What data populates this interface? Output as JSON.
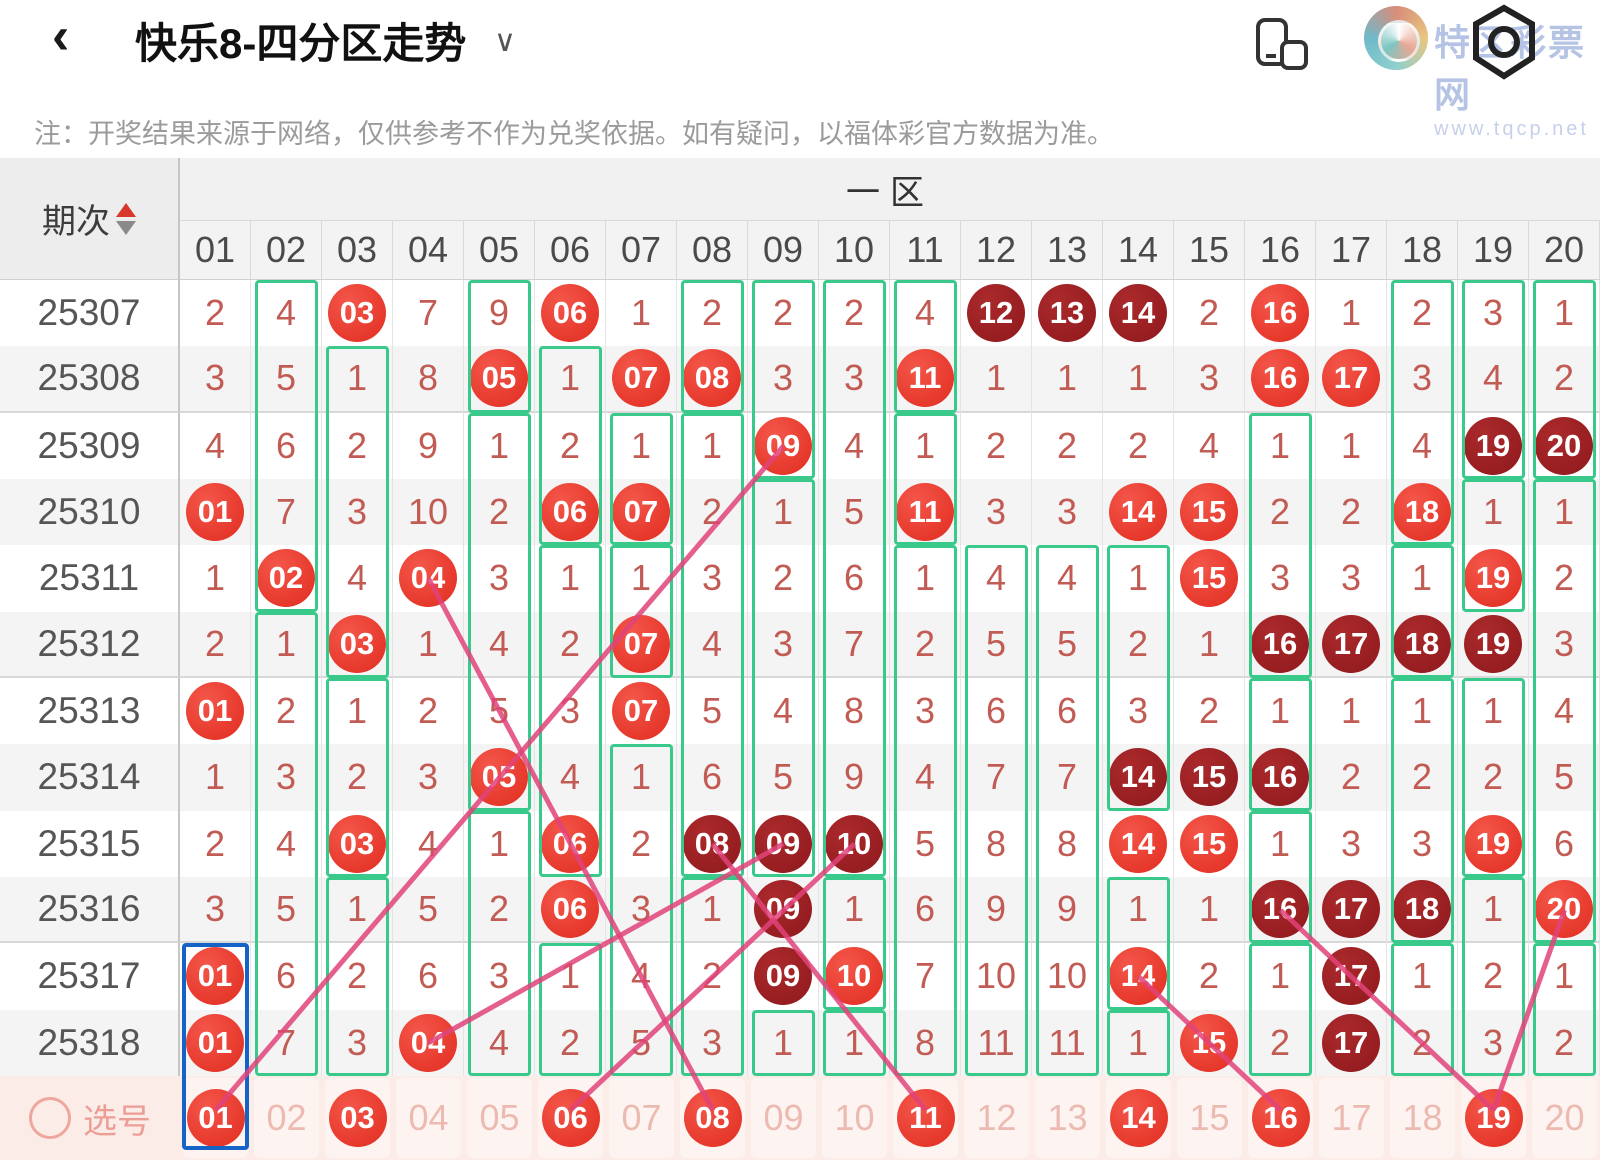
{
  "header": {
    "back_icon": "‹",
    "title": "快乐8-四分区走势",
    "dropdown_icon": "∨"
  },
  "watermark": {
    "site_name": "特区彩票网",
    "site_url": "www.tqcp.net"
  },
  "note": "注：开奖结果来源于网络，仅供参考不作为兑奖依据。如有疑问，以福体彩官方数据为准。",
  "table": {
    "period_label": "期次",
    "zone_label": "一区",
    "columns": [
      "01",
      "02",
      "03",
      "04",
      "05",
      "06",
      "07",
      "08",
      "09",
      "10",
      "11",
      "12",
      "13",
      "14",
      "15",
      "16",
      "17",
      "18",
      "19",
      "20"
    ],
    "rows": [
      {
        "period": "25307",
        "cells": [
          "2",
          "4",
          "R03",
          "7",
          "9",
          "R06",
          "1",
          "2",
          "2",
          "2",
          "4",
          "D12",
          "D13",
          "D14",
          "2",
          "R16",
          "1",
          "2",
          "3",
          "1"
        ]
      },
      {
        "period": "25308",
        "cells": [
          "3",
          "5",
          "1",
          "8",
          "R05",
          "1",
          "R07",
          "R08",
          "3",
          "3",
          "R11",
          "1",
          "1",
          "1",
          "3",
          "R16",
          "R17",
          "3",
          "4",
          "2"
        ]
      },
      {
        "period": "25309",
        "cells": [
          "4",
          "6",
          "2",
          "9",
          "1",
          "2",
          "1",
          "1",
          "R09",
          "4",
          "1",
          "2",
          "2",
          "2",
          "4",
          "1",
          "1",
          "4",
          "D19",
          "D20"
        ]
      },
      {
        "period": "25310",
        "cells": [
          "R01",
          "7",
          "3",
          "10",
          "2",
          "R06",
          "R07",
          "2",
          "1",
          "5",
          "R11",
          "3",
          "3",
          "R14",
          "R15",
          "2",
          "2",
          "R18",
          "1",
          "1"
        ]
      },
      {
        "period": "25311",
        "cells": [
          "1",
          "R02",
          "4",
          "R04",
          "3",
          "1",
          "1",
          "3",
          "2",
          "6",
          "1",
          "4",
          "4",
          "1",
          "R15",
          "3",
          "3",
          "1",
          "R19",
          "2"
        ]
      },
      {
        "period": "25312",
        "cells": [
          "2",
          "1",
          "R03",
          "1",
          "4",
          "2",
          "R07",
          "4",
          "3",
          "7",
          "2",
          "5",
          "5",
          "2",
          "1",
          "D16",
          "D17",
          "D18",
          "D19",
          "3"
        ]
      },
      {
        "period": "25313",
        "cells": [
          "R01",
          "2",
          "1",
          "2",
          "5",
          "3",
          "R07",
          "5",
          "4",
          "8",
          "3",
          "6",
          "6",
          "3",
          "2",
          "1",
          "1",
          "1",
          "1",
          "4"
        ]
      },
      {
        "period": "25314",
        "cells": [
          "1",
          "3",
          "2",
          "3",
          "R05",
          "4",
          "1",
          "6",
          "5",
          "9",
          "4",
          "7",
          "7",
          "D14",
          "D15",
          "D16",
          "2",
          "2",
          "2",
          "5"
        ]
      },
      {
        "period": "25315",
        "cells": [
          "2",
          "4",
          "R03",
          "4",
          "1",
          "R06",
          "2",
          "D08",
          "D09",
          "D10",
          "5",
          "8",
          "8",
          "R14",
          "R15",
          "1",
          "3",
          "3",
          "R19",
          "6"
        ]
      },
      {
        "period": "25316",
        "cells": [
          "3",
          "5",
          "1",
          "5",
          "2",
          "R06",
          "3",
          "1",
          "D09",
          "1",
          "6",
          "9",
          "9",
          "1",
          "1",
          "D16",
          "D17",
          "D18",
          "1",
          "R20"
        ]
      },
      {
        "period": "25317",
        "cells": [
          "R01",
          "6",
          "2",
          "6",
          "3",
          "1",
          "4",
          "2",
          "D09",
          "R10",
          "7",
          "10",
          "10",
          "R14",
          "2",
          "1",
          "D17",
          "1",
          "2",
          "1"
        ]
      },
      {
        "period": "25318",
        "cells": [
          "R01",
          "7",
          "3",
          "R04",
          "4",
          "2",
          "5",
          "3",
          "1",
          "1",
          "8",
          "11",
          "11",
          "1",
          "R15",
          "2",
          "D17",
          "2",
          "3",
          "2"
        ]
      }
    ],
    "selection_row": {
      "label": "选号",
      "cells": [
        "R01",
        "02",
        "R03",
        "04",
        "05",
        "R06",
        "07",
        "R08",
        "09",
        "10",
        "R11",
        "12",
        "13",
        "R14",
        "15",
        "R16",
        "17",
        "18",
        "R19",
        "20"
      ]
    }
  },
  "green_boxes": [
    {
      "col": 2,
      "from": 0,
      "to": 4
    },
    {
      "col": 2,
      "from": 5,
      "to": 11
    },
    {
      "col": 3,
      "from": 1,
      "to": 5
    },
    {
      "col": 3,
      "from": 6,
      "to": 8
    },
    {
      "col": 3,
      "from": 9,
      "to": 11
    },
    {
      "col": 5,
      "from": 0,
      "to": 1
    },
    {
      "col": 5,
      "from": 2,
      "to": 7
    },
    {
      "col": 5,
      "from": 8,
      "to": 11
    },
    {
      "col": 6,
      "from": 1,
      "to": 3
    },
    {
      "col": 6,
      "from": 4,
      "to": 8
    },
    {
      "col": 6,
      "from": 10,
      "to": 11
    },
    {
      "col": 7,
      "from": 2,
      "to": 3
    },
    {
      "col": 7,
      "from": 4,
      "to": 5
    },
    {
      "col": 7,
      "from": 7,
      "to": 11
    },
    {
      "col": 8,
      "from": 0,
      "to": 1
    },
    {
      "col": 8,
      "from": 2,
      "to": 8
    },
    {
      "col": 8,
      "from": 9,
      "to": 11
    },
    {
      "col": 9,
      "from": 0,
      "to": 2
    },
    {
      "col": 9,
      "from": 3,
      "to": 8
    },
    {
      "col": 9,
      "from": 11,
      "to": 11
    },
    {
      "col": 10,
      "from": 0,
      "to": 8
    },
    {
      "col": 10,
      "from": 9,
      "to": 10
    },
    {
      "col": 10,
      "from": 11,
      "to": 11
    },
    {
      "col": 11,
      "from": 0,
      "to": 1
    },
    {
      "col": 11,
      "from": 2,
      "to": 3
    },
    {
      "col": 11,
      "from": 4,
      "to": 11
    },
    {
      "col": 12,
      "from": 4,
      "to": 11
    },
    {
      "col": 13,
      "from": 4,
      "to": 11
    },
    {
      "col": 14,
      "from": 4,
      "to": 7
    },
    {
      "col": 14,
      "from": 9,
      "to": 10
    },
    {
      "col": 14,
      "from": 11,
      "to": 11
    },
    {
      "col": 16,
      "from": 2,
      "to": 5
    },
    {
      "col": 16,
      "from": 6,
      "to": 7
    },
    {
      "col": 16,
      "from": 8,
      "to": 9
    },
    {
      "col": 16,
      "from": 10,
      "to": 11
    },
    {
      "col": 18,
      "from": 0,
      "to": 3
    },
    {
      "col": 18,
      "from": 4,
      "to": 5
    },
    {
      "col": 18,
      "from": 6,
      "to": 9
    },
    {
      "col": 18,
      "from": 10,
      "to": 11
    },
    {
      "col": 19,
      "from": 0,
      "to": 2
    },
    {
      "col": 19,
      "from": 3,
      "to": 4
    },
    {
      "col": 19,
      "from": 6,
      "to": 8
    },
    {
      "col": 19,
      "from": 9,
      "to": 11
    },
    {
      "col": 20,
      "from": 0,
      "to": 2
    },
    {
      "col": 20,
      "from": 3,
      "to": 9
    },
    {
      "col": 20,
      "from": 10,
      "to": 11
    }
  ],
  "blue_box": {
    "col": 1,
    "from": 10,
    "to": -1
  },
  "trend_lines": [
    {
      "points": [
        [
          9,
          2
        ],
        [
          5,
          7
        ],
        [
          1,
          -1
        ]
      ]
    },
    {
      "points": [
        [
          4,
          4
        ],
        [
          6,
          8
        ],
        [
          8,
          -1
        ]
      ]
    },
    {
      "points": [
        [
          8,
          8
        ],
        [
          11,
          -1
        ]
      ]
    },
    {
      "points": [
        [
          10,
          8
        ],
        [
          6,
          -1
        ]
      ]
    },
    {
      "points": [
        [
          9,
          8
        ],
        [
          4,
          11
        ]
      ]
    },
    {
      "points": [
        [
          14,
          10
        ],
        [
          16,
          -1
        ]
      ]
    },
    {
      "points": [
        [
          16,
          9
        ],
        [
          19,
          -1
        ]
      ]
    },
    {
      "points": [
        [
          20,
          9
        ],
        [
          19,
          -1
        ]
      ]
    }
  ],
  "colors": {
    "ball_red": "#e93a2d",
    "ball_dark": "#9c1e22",
    "green_box": "#38c98b",
    "trend_line": "#e0437a",
    "selection_blue": "#1663c7",
    "miss_text": "#c25b53"
  }
}
